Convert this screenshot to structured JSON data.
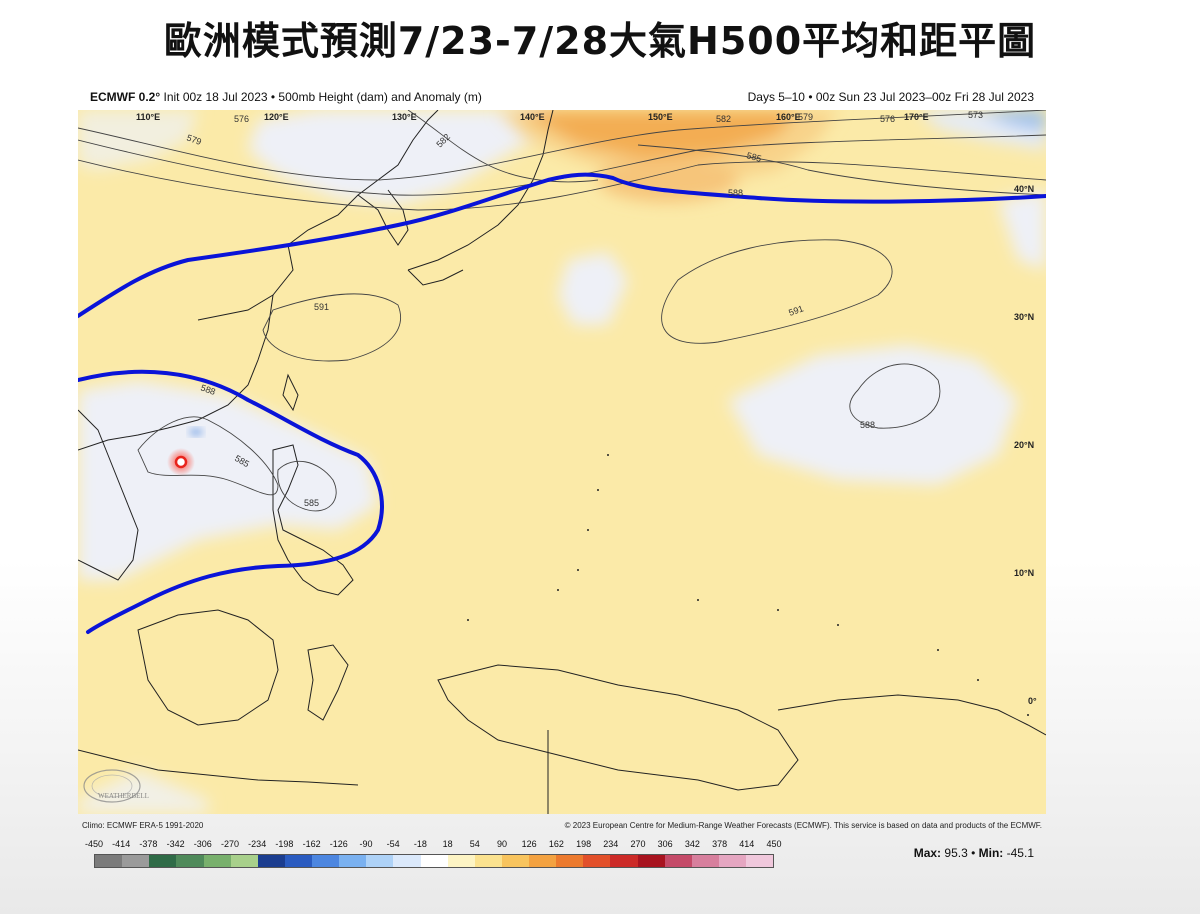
{
  "slide": {
    "title": "歐洲模式預測7/23-7/28大氣H500平均和距平圖"
  },
  "map": {
    "header_model": "ECMWF 0.2°",
    "header_left": "Init 00z 18 Jul 2023 • 500mb Height (dam) and Anomaly (m)",
    "header_right": "Days 5–10 • 00z Sun 23 Jul 2023–00z Fri 28 Jul 2023",
    "longitudes": [
      "110°E",
      "120°E",
      "130°E",
      "140°E",
      "150°E",
      "160°E",
      "170°E"
    ],
    "latitudes": [
      "40°N",
      "30°N",
      "20°N",
      "10°N",
      "0°"
    ],
    "contour_labels": [
      "579",
      "576",
      "582",
      "585",
      "588",
      "591",
      "591",
      "585",
      "585",
      "588",
      "588",
      "582",
      "579",
      "576",
      "573"
    ],
    "logo_text": "WEATHERBELL",
    "climo_credit": "Climo: ECMWF ERA-5 1991-2020",
    "copyright": "© 2023 European Centre for Medium-Range Weather Forecasts (ECMWF). This service is based on data and products of the ECMWF.",
    "max_label": "Max:",
    "max_value": "95.3",
    "min_label": "Min:",
    "min_value": "-45.1",
    "colors": {
      "high_contour": "#0a14d8",
      "marker": "#e8241c",
      "positive_anomaly": "#fbeaa6",
      "strong_positive_anomaly": "#f5a84a",
      "neutral": "#eef0f6"
    }
  },
  "colorbar": {
    "labels": [
      "-450",
      "-414",
      "-378",
      "-342",
      "-306",
      "-270",
      "-234",
      "-198",
      "-162",
      "-126",
      "-90",
      "-54",
      "-18",
      "18",
      "54",
      "90",
      "126",
      "162",
      "198",
      "234",
      "270",
      "306",
      "342",
      "378",
      "414",
      "450"
    ],
    "colors": [
      "#7b7b7b",
      "#9a9a9a",
      "#2f6b47",
      "#4f8a5a",
      "#78b06c",
      "#a8d08b",
      "#1b3d8f",
      "#2a5bc0",
      "#4c86e0",
      "#7ab1f0",
      "#aed2f7",
      "#dbe9fb",
      "#ffffff",
      "#fdf4c4",
      "#fbe28f",
      "#f8c45e",
      "#f3a241",
      "#ec7a2e",
      "#e2502a",
      "#cc2a27",
      "#a8131f",
      "#c44a68",
      "#d77f9d",
      "#e5a6c1",
      "#f0c8dc"
    ]
  }
}
